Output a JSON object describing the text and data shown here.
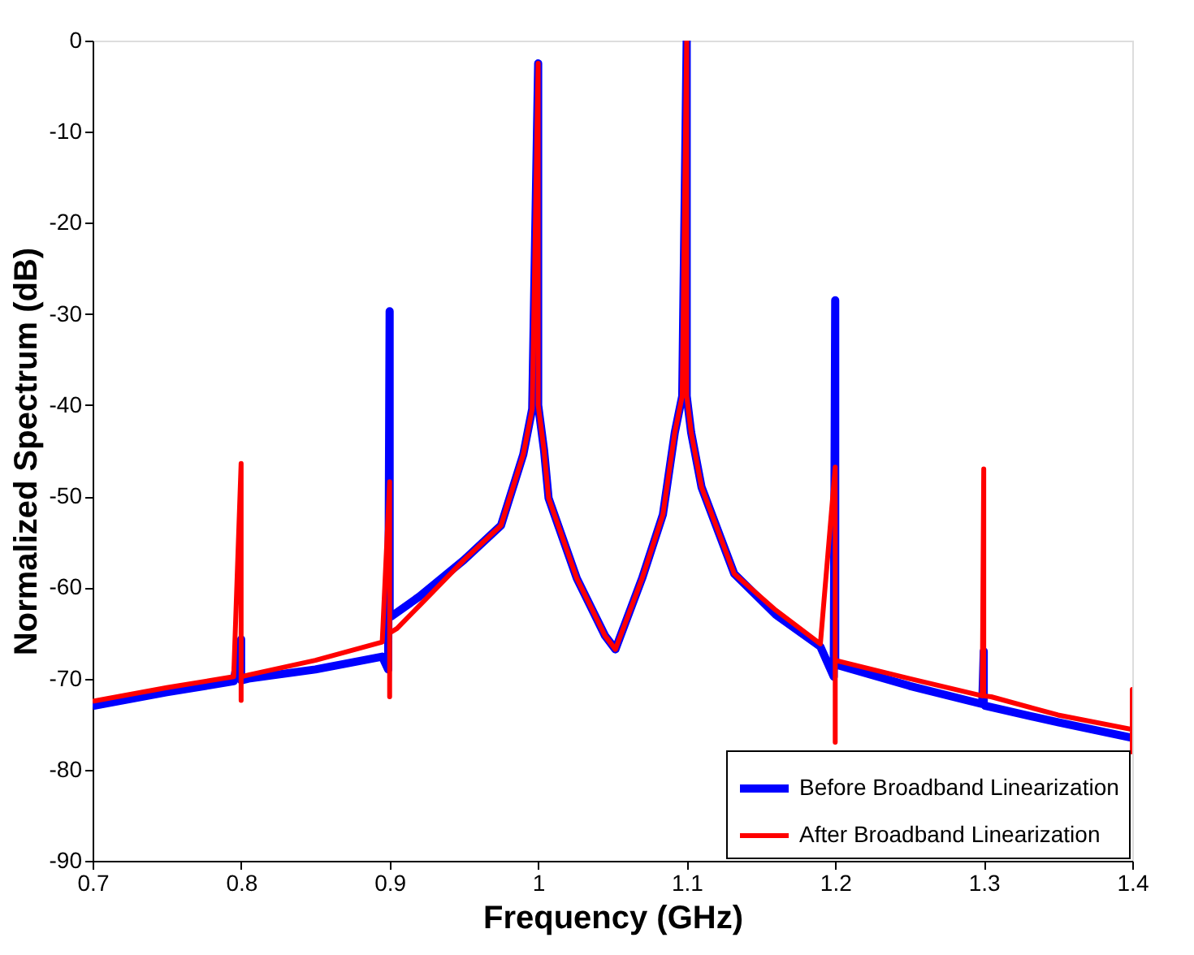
{
  "chart_data": {
    "type": "line",
    "xlabel": "Frequency (GHz)",
    "ylabel": "Normalized Spectrum (dB)",
    "xlim": [
      0.7,
      1.4
    ],
    "xticks": [
      0.7,
      0.8,
      0.9,
      1,
      1.1,
      1.2,
      1.3,
      1.4
    ],
    "ylim": [
      -90,
      0
    ],
    "yticks": [
      -90,
      -80,
      -70,
      -60,
      -50,
      -40,
      -30,
      -20,
      -10,
      0
    ],
    "grid": false,
    "legend": "bottom right",
    "line_style": "solid",
    "marker": "none",
    "series": [
      {
        "name": "Before Broadband Linearization",
        "color": "#0000ff",
        "x": [
          0.7,
          0.75,
          0.795,
          0.8,
          0.8,
          0.805,
          0.85,
          0.895,
          0.899,
          0.9,
          0.9,
          0.901,
          0.92,
          0.95,
          0.975,
          0.99,
          0.996,
          1.0,
          1.0,
          1.004,
          1.007,
          1.026,
          1.045,
          1.052,
          1.07,
          1.084,
          1.092,
          1.097,
          1.1,
          1.1,
          1.103,
          1.11,
          1.132,
          1.16,
          1.19,
          1.199,
          1.2,
          1.2,
          1.2,
          1.201,
          1.25,
          1.299,
          1.3,
          1.3,
          1.301,
          1.35,
          1.4
        ],
        "values": [
          -73,
          -71.5,
          -70.3,
          -65.7,
          -70.2,
          -70,
          -69,
          -67.6,
          -69,
          -29.7,
          -63,
          -63.2,
          -61,
          -57,
          -53.2,
          -45.4,
          -40.4,
          -2.5,
          -40,
          -45,
          -50.2,
          -59,
          -65.3,
          -66.8,
          -59,
          -52,
          -43,
          -39,
          0,
          -39,
          -43,
          -49,
          -58.5,
          -63,
          -66.5,
          -69.8,
          -28.5,
          -68,
          -68.5,
          -68.5,
          -70.8,
          -72.8,
          -67,
          -72.8,
          -73,
          -74.8,
          -76.5
        ]
      },
      {
        "name": "After Broadband Linearization",
        "color": "#ff0000",
        "x": [
          0.7,
          0.75,
          0.795,
          0.8,
          0.8,
          0.8,
          0.805,
          0.85,
          0.895,
          0.9,
          0.9,
          0.9,
          0.905,
          0.92,
          0.95,
          0.975,
          0.99,
          0.996,
          1.0,
          1.0,
          1.004,
          1.007,
          1.026,
          1.045,
          1.052,
          1.07,
          1.084,
          1.092,
          1.097,
          1.1,
          1.1,
          1.103,
          1.11,
          1.132,
          1.16,
          1.19,
          1.2,
          1.2,
          1.2,
          1.205,
          1.25,
          1.299,
          1.3,
          1.3,
          1.305,
          1.35,
          1.4,
          1.4,
          1.4
        ],
        "values": [
          -72.5,
          -71,
          -69.8,
          -46.4,
          -72.4,
          -69.8,
          -69.6,
          -68,
          -66,
          -48.4,
          -72,
          -65,
          -64.5,
          -62,
          -57,
          -53.2,
          -45.4,
          -40.4,
          -2.5,
          -40,
          -45,
          -50.2,
          -59,
          -65.3,
          -66.8,
          -59,
          -52,
          -43,
          -39,
          0,
          -39,
          -43,
          -49,
          -58.5,
          -62.5,
          -66.2,
          -46.8,
          -77,
          -68,
          -68.2,
          -70,
          -71.9,
          -47,
          -71.9,
          -72,
          -74,
          -75.6,
          -71.2,
          -78.3
        ]
      }
    ]
  }
}
